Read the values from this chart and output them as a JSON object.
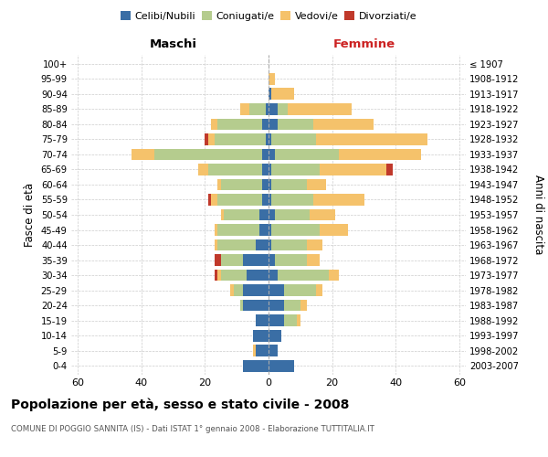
{
  "age_groups": [
    "100+",
    "95-99",
    "90-94",
    "85-89",
    "80-84",
    "75-79",
    "70-74",
    "65-69",
    "60-64",
    "55-59",
    "50-54",
    "45-49",
    "40-44",
    "35-39",
    "30-34",
    "25-29",
    "20-24",
    "15-19",
    "10-14",
    "5-9",
    "0-4"
  ],
  "birth_years": [
    "≤ 1907",
    "1908-1912",
    "1913-1917",
    "1918-1922",
    "1923-1927",
    "1928-1932",
    "1933-1937",
    "1938-1942",
    "1943-1947",
    "1948-1952",
    "1953-1957",
    "1958-1962",
    "1963-1967",
    "1968-1972",
    "1973-1977",
    "1978-1982",
    "1983-1987",
    "1988-1992",
    "1993-1997",
    "1998-2002",
    "2003-2007"
  ],
  "male": {
    "celibi": [
      0,
      0,
      0,
      1,
      2,
      1,
      2,
      2,
      2,
      2,
      3,
      3,
      4,
      8,
      7,
      8,
      8,
      4,
      5,
      4,
      8
    ],
    "coniugati": [
      0,
      0,
      0,
      5,
      14,
      16,
      34,
      17,
      13,
      14,
      11,
      13,
      12,
      7,
      8,
      3,
      1,
      0,
      0,
      0,
      0
    ],
    "vedovi": [
      0,
      0,
      0,
      3,
      2,
      2,
      7,
      3,
      1,
      2,
      1,
      1,
      1,
      0,
      1,
      1,
      0,
      0,
      0,
      1,
      0
    ],
    "divorziati": [
      0,
      0,
      0,
      0,
      0,
      1,
      0,
      0,
      0,
      1,
      0,
      0,
      0,
      2,
      1,
      0,
      0,
      0,
      0,
      0,
      0
    ]
  },
  "female": {
    "nubili": [
      0,
      0,
      1,
      3,
      3,
      1,
      2,
      1,
      1,
      1,
      2,
      1,
      1,
      2,
      3,
      5,
      5,
      5,
      4,
      3,
      8
    ],
    "coniugate": [
      0,
      0,
      0,
      3,
      11,
      14,
      20,
      15,
      11,
      13,
      11,
      15,
      11,
      10,
      16,
      10,
      5,
      4,
      0,
      0,
      0
    ],
    "vedove": [
      0,
      2,
      7,
      20,
      19,
      35,
      26,
      21,
      6,
      16,
      8,
      9,
      5,
      4,
      3,
      2,
      2,
      1,
      0,
      0,
      0
    ],
    "divorziate": [
      0,
      0,
      0,
      0,
      0,
      0,
      0,
      2,
      0,
      0,
      0,
      0,
      0,
      0,
      0,
      0,
      0,
      0,
      0,
      0,
      0
    ]
  },
  "colors": {
    "celibi": "#3a6ea5",
    "coniugati": "#b5cc8e",
    "vedovi": "#f5c26b",
    "divorziati": "#c0392b"
  },
  "xlim": 62,
  "title": "Popolazione per età, sesso e stato civile - 2008",
  "subtitle": "COMUNE DI POGGIO SANNITA (IS) - Dati ISTAT 1° gennaio 2008 - Elaborazione TUTTITALIA.IT",
  "ylabel_left": "Fasce di età",
  "ylabel_right": "Anni di nascita",
  "xlabel_left": "Maschi",
  "xlabel_right": "Femmine"
}
